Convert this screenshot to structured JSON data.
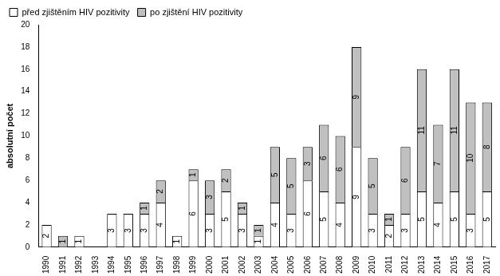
{
  "chart_data": {
    "type": "bar",
    "stacked": true,
    "y_label": "absolutní počet",
    "categories": [
      "1990",
      "1991",
      "1992",
      "1993",
      "1994",
      "1995",
      "1996",
      "1997",
      "1998",
      "1999",
      "2000",
      "2001",
      "2002",
      "2003",
      "2004",
      "2005",
      "2006",
      "2007",
      "2008",
      "2009",
      "2010",
      "2011",
      "2012",
      "2013",
      "2014",
      "2015",
      "2016",
      "2017"
    ],
    "series": [
      {
        "name": "před zjištěním HIV pozitivity",
        "color": "#ffffff",
        "values": [
          2,
          0,
          1,
          0,
          3,
          3,
          3,
          4,
          1,
          6,
          3,
          5,
          3,
          1,
          4,
          3,
          6,
          5,
          4,
          9,
          3,
          2,
          3,
          5,
          4,
          5,
          3,
          5
        ]
      },
      {
        "name": "po zjištění HIV pozitivity",
        "color": "#c0c0c0",
        "values": [
          0,
          1,
          0,
          0,
          0,
          0,
          1,
          2,
          0,
          1,
          3,
          2,
          1,
          1,
          5,
          5,
          3,
          6,
          6,
          9,
          5,
          1,
          6,
          11,
          7,
          11,
          10,
          8
        ]
      }
    ],
    "ylim": [
      0,
      20
    ],
    "yticks": [
      0,
      2,
      4,
      6,
      8,
      10,
      12,
      14,
      16,
      18,
      20
    ],
    "grid": false,
    "legend": "top-left",
    "data_labels": true
  }
}
